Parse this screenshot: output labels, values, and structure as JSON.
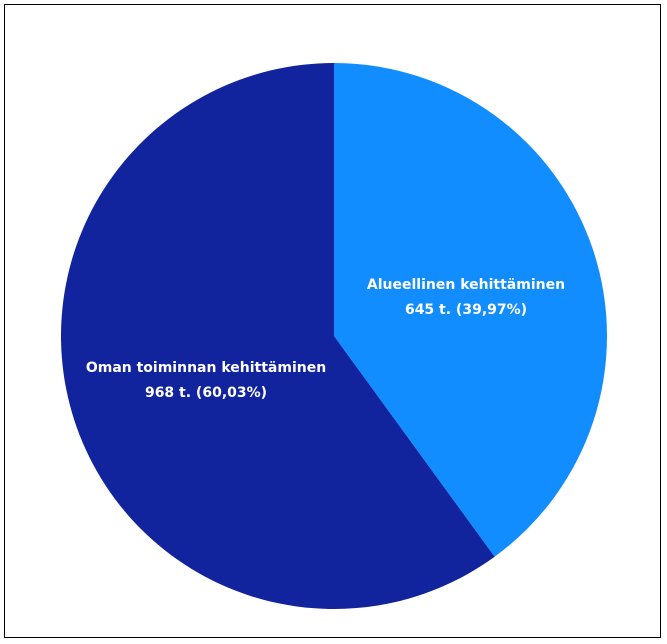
{
  "chart_data": {
    "type": "pie",
    "title": "",
    "slices": [
      {
        "label": "Alueellinen kehittäminen",
        "value": 645,
        "value_text": "645 t. (39,97%)",
        "percent": 39.97,
        "color": "#118dff"
      },
      {
        "label": "Oman toiminnan kehittäminen",
        "value": 968,
        "value_text": "968 t. (60,03%)",
        "percent": 60.03,
        "color": "#12239e"
      }
    ],
    "start_angle": "top",
    "direction": "clockwise",
    "legend": "none"
  }
}
